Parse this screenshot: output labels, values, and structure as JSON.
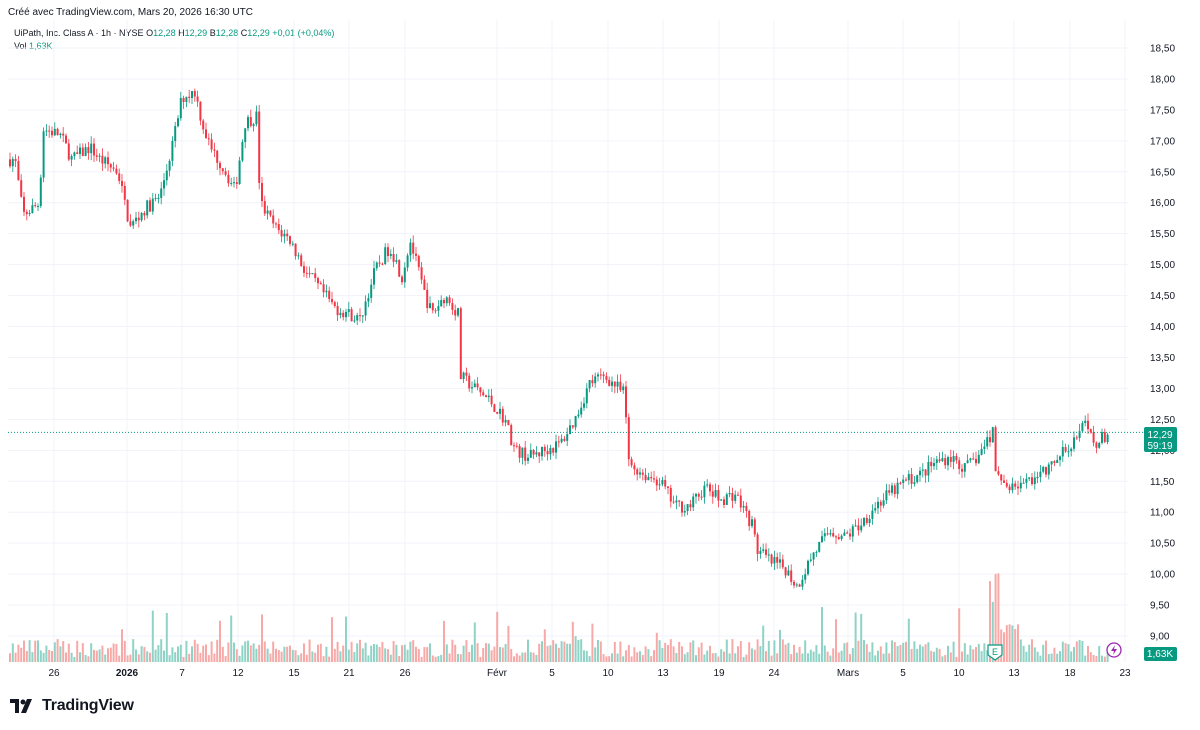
{
  "header": {
    "caption": "Créé avec TradingView.com, Mars 20, 2026 16:30 UTC"
  },
  "legend": {
    "symbol": "UiPath, Inc. Class A · 1h · NYSE",
    "o_label": "O",
    "o_value": "12,28",
    "h_label": "H",
    "h_value": "12,29",
    "b_label": "B",
    "b_value": "12,28",
    "c_label": "C",
    "c_value": "12,29",
    "change": "+0,01 (+0,04%)",
    "vol_label": "Vol",
    "vol_value": "1,63K"
  },
  "price_badge": {
    "price": "12,29",
    "countdown": "59:19"
  },
  "volume_badge": "1,63K",
  "earnings_marker": "E",
  "brand": {
    "name": "TradingView"
  },
  "colors": {
    "up": "#089981",
    "down": "#f23645",
    "up_vol": "#8fd3c6",
    "down_vol": "#f7a9a7",
    "grid": "#f0f3fa",
    "axis_text": "#131722"
  },
  "chart_data": {
    "type": "candlestick",
    "title": "UiPath, Inc. Class A · 1h · NYSE",
    "ylim": [
      9.0,
      18.75
    ],
    "y_ticks": [
      "18,50",
      "18,00",
      "17,50",
      "17,00",
      "16,50",
      "16,00",
      "15,50",
      "15,00",
      "14,50",
      "14,00",
      "13,50",
      "13,00",
      "12,50",
      "12,00",
      "11,50",
      "11,00",
      "10,50",
      "10,00",
      "9,50",
      "9,00"
    ],
    "x_ticks": [
      "26",
      "2026",
      "7",
      "12",
      "15",
      "21",
      "26",
      "Févr",
      "5",
      "10",
      "13",
      "19",
      "24",
      "Mars",
      "5",
      "10",
      "13",
      "18",
      "23"
    ],
    "current_price": 12.29,
    "path": [
      [
        0,
        16.7
      ],
      [
        15,
        16.7
      ],
      [
        23,
        15.8
      ],
      [
        40,
        16.0
      ],
      [
        42,
        17.2
      ],
      [
        60,
        17.1
      ],
      [
        72,
        16.7
      ],
      [
        90,
        16.9
      ],
      [
        100,
        16.7
      ],
      [
        118,
        16.5
      ],
      [
        130,
        15.6
      ],
      [
        145,
        15.9
      ],
      [
        160,
        16.1
      ],
      [
        172,
        16.9
      ],
      [
        182,
        17.7
      ],
      [
        195,
        17.8
      ],
      [
        202,
        17.3
      ],
      [
        210,
        16.9
      ],
      [
        222,
        16.6
      ],
      [
        235,
        16.2
      ],
      [
        245,
        17.3
      ],
      [
        257,
        17.4
      ],
      [
        260,
        16.0
      ],
      [
        275,
        15.6
      ],
      [
        290,
        15.4
      ],
      [
        305,
        14.9
      ],
      [
        320,
        14.6
      ],
      [
        335,
        14.3
      ],
      [
        350,
        14.2
      ],
      [
        360,
        14.1
      ],
      [
        375,
        14.9
      ],
      [
        390,
        15.3
      ],
      [
        402,
        14.8
      ],
      [
        410,
        15.4
      ],
      [
        425,
        14.5
      ],
      [
        432,
        14.2
      ],
      [
        445,
        14.5
      ],
      [
        458,
        14.2
      ],
      [
        460,
        13.2
      ],
      [
        475,
        13.0
      ],
      [
        490,
        12.8
      ],
      [
        505,
        12.5
      ],
      [
        515,
        12.0
      ],
      [
        530,
        11.9
      ],
      [
        545,
        12.0
      ],
      [
        560,
        12.1
      ],
      [
        575,
        12.5
      ],
      [
        590,
        13.1
      ],
      [
        605,
        13.2
      ],
      [
        625,
        12.9
      ],
      [
        628,
        11.8
      ],
      [
        645,
        11.6
      ],
      [
        660,
        11.5
      ],
      [
        675,
        11.1
      ],
      [
        690,
        11.1
      ],
      [
        705,
        11.4
      ],
      [
        720,
        11.2
      ],
      [
        735,
        11.3
      ],
      [
        752,
        10.8
      ],
      [
        757,
        10.4
      ],
      [
        770,
        10.2
      ],
      [
        785,
        10.1
      ],
      [
        797,
        9.8
      ],
      [
        812,
        10.3
      ],
      [
        830,
        10.7
      ],
      [
        845,
        10.6
      ],
      [
        860,
        10.8
      ],
      [
        875,
        11.1
      ],
      [
        890,
        11.3
      ],
      [
        905,
        11.5
      ],
      [
        920,
        11.6
      ],
      [
        935,
        11.8
      ],
      [
        950,
        11.9
      ],
      [
        965,
        11.7
      ],
      [
        978,
        11.9
      ],
      [
        993,
        12.3
      ],
      [
        995,
        11.6
      ],
      [
        1010,
        11.4
      ],
      [
        1025,
        11.5
      ],
      [
        1040,
        11.6
      ],
      [
        1055,
        11.8
      ],
      [
        1070,
        12.1
      ],
      [
        1085,
        12.4
      ],
      [
        1095,
        12.1
      ],
      [
        1110,
        12.29
      ]
    ],
    "volume_note": "hourly volume bars, spikes near 12 Mars earnings"
  }
}
